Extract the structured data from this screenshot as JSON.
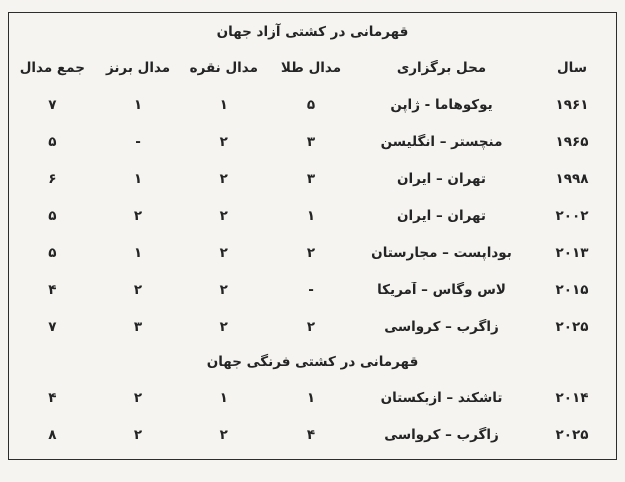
{
  "page": {
    "background_color": "#f5f4f1",
    "table_border_color": "#2d2d2d",
    "text_color": "#242424"
  },
  "table": {
    "columns": [
      "سال",
      "محل برگزاری",
      "مدال طلا",
      "مدال نقره",
      "مدال برنز",
      "جمع مدال"
    ],
    "sections": [
      {
        "title": "قهرمانی در کشتی آزاد جهان",
        "show_header": true,
        "rows": [
          [
            "۱۹۶۱",
            "یوکوهاما - ژاپن",
            "۵",
            "۱",
            "۱",
            "۷"
          ],
          [
            "۱۹۶۵",
            "منچستر – انگلیسن",
            "۳",
            "۲",
            "-",
            "۵"
          ],
          [
            "۱۹۹۸",
            "تهران – ایران",
            "۳",
            "۲",
            "۱",
            "۶"
          ],
          [
            "۲۰۰۲",
            "تهران – ایران",
            "۱",
            "۲",
            "۲",
            "۵"
          ],
          [
            "۲۰۱۳",
            "بوداپست – مجارستان",
            "۲",
            "۲",
            "۱",
            "۵"
          ],
          [
            "۲۰۱۵",
            "لاس وگاس – آمریکا",
            "-",
            "۲",
            "۲",
            "۴"
          ],
          [
            "۲۰۲۵",
            "زاگرب – کرواسی",
            "۲",
            "۲",
            "۳",
            "۷"
          ]
        ]
      },
      {
        "title": "قهرمانی در کشتی فرنگی جهان",
        "show_header": false,
        "rows": [
          [
            "۲۰۱۴",
            "تاشکند – ازبکستان",
            "۱",
            "۱",
            "۲",
            "۴"
          ],
          [
            "۲۰۲۵",
            "زاگرب – کرواسی",
            "۴",
            "۲",
            "۲",
            "۸"
          ]
        ]
      }
    ]
  },
  "chart_data": {
    "type": "table",
    "title": "قهرمانی در کشتی آزاد جهان / قهرمانی در کشتی فرنگی جهان",
    "columns": [
      "سال",
      "محل برگزاری",
      "مدال طلا",
      "مدال نقره",
      "مدال برنز",
      "جمع مدال"
    ],
    "freestyle_rows": [
      {
        "year": 1961,
        "venue": "یوکوهاما - ژاپن",
        "gold": 5,
        "silver": 1,
        "bronze": 1,
        "total": 7
      },
      {
        "year": 1965,
        "venue": "منچستر – انگلیسن",
        "gold": 3,
        "silver": 2,
        "bronze": null,
        "total": 5
      },
      {
        "year": 1998,
        "venue": "تهران – ایران",
        "gold": 3,
        "silver": 2,
        "bronze": 1,
        "total": 6
      },
      {
        "year": 2002,
        "venue": "تهران – ایران",
        "gold": 1,
        "silver": 2,
        "bronze": 2,
        "total": 5
      },
      {
        "year": 2013,
        "venue": "بوداپست – مجارستان",
        "gold": 2,
        "silver": 2,
        "bronze": 1,
        "total": 5
      },
      {
        "year": 2015,
        "venue": "لاس وگاس – آمریکا",
        "gold": null,
        "silver": 2,
        "bronze": 2,
        "total": 4
      },
      {
        "year": 2025,
        "venue": "زاگرب – کرواسی",
        "gold": 2,
        "silver": 2,
        "bronze": 3,
        "total": 7
      }
    ],
    "greco_roman_rows": [
      {
        "year": 2014,
        "venue": "تاشکند – ازبکستان",
        "gold": 1,
        "silver": 1,
        "bronze": 2,
        "total": 4
      },
      {
        "year": 2025,
        "venue": "زاگرب – کرواسی",
        "gold": 4,
        "silver": 2,
        "bronze": 2,
        "total": 8
      }
    ]
  }
}
